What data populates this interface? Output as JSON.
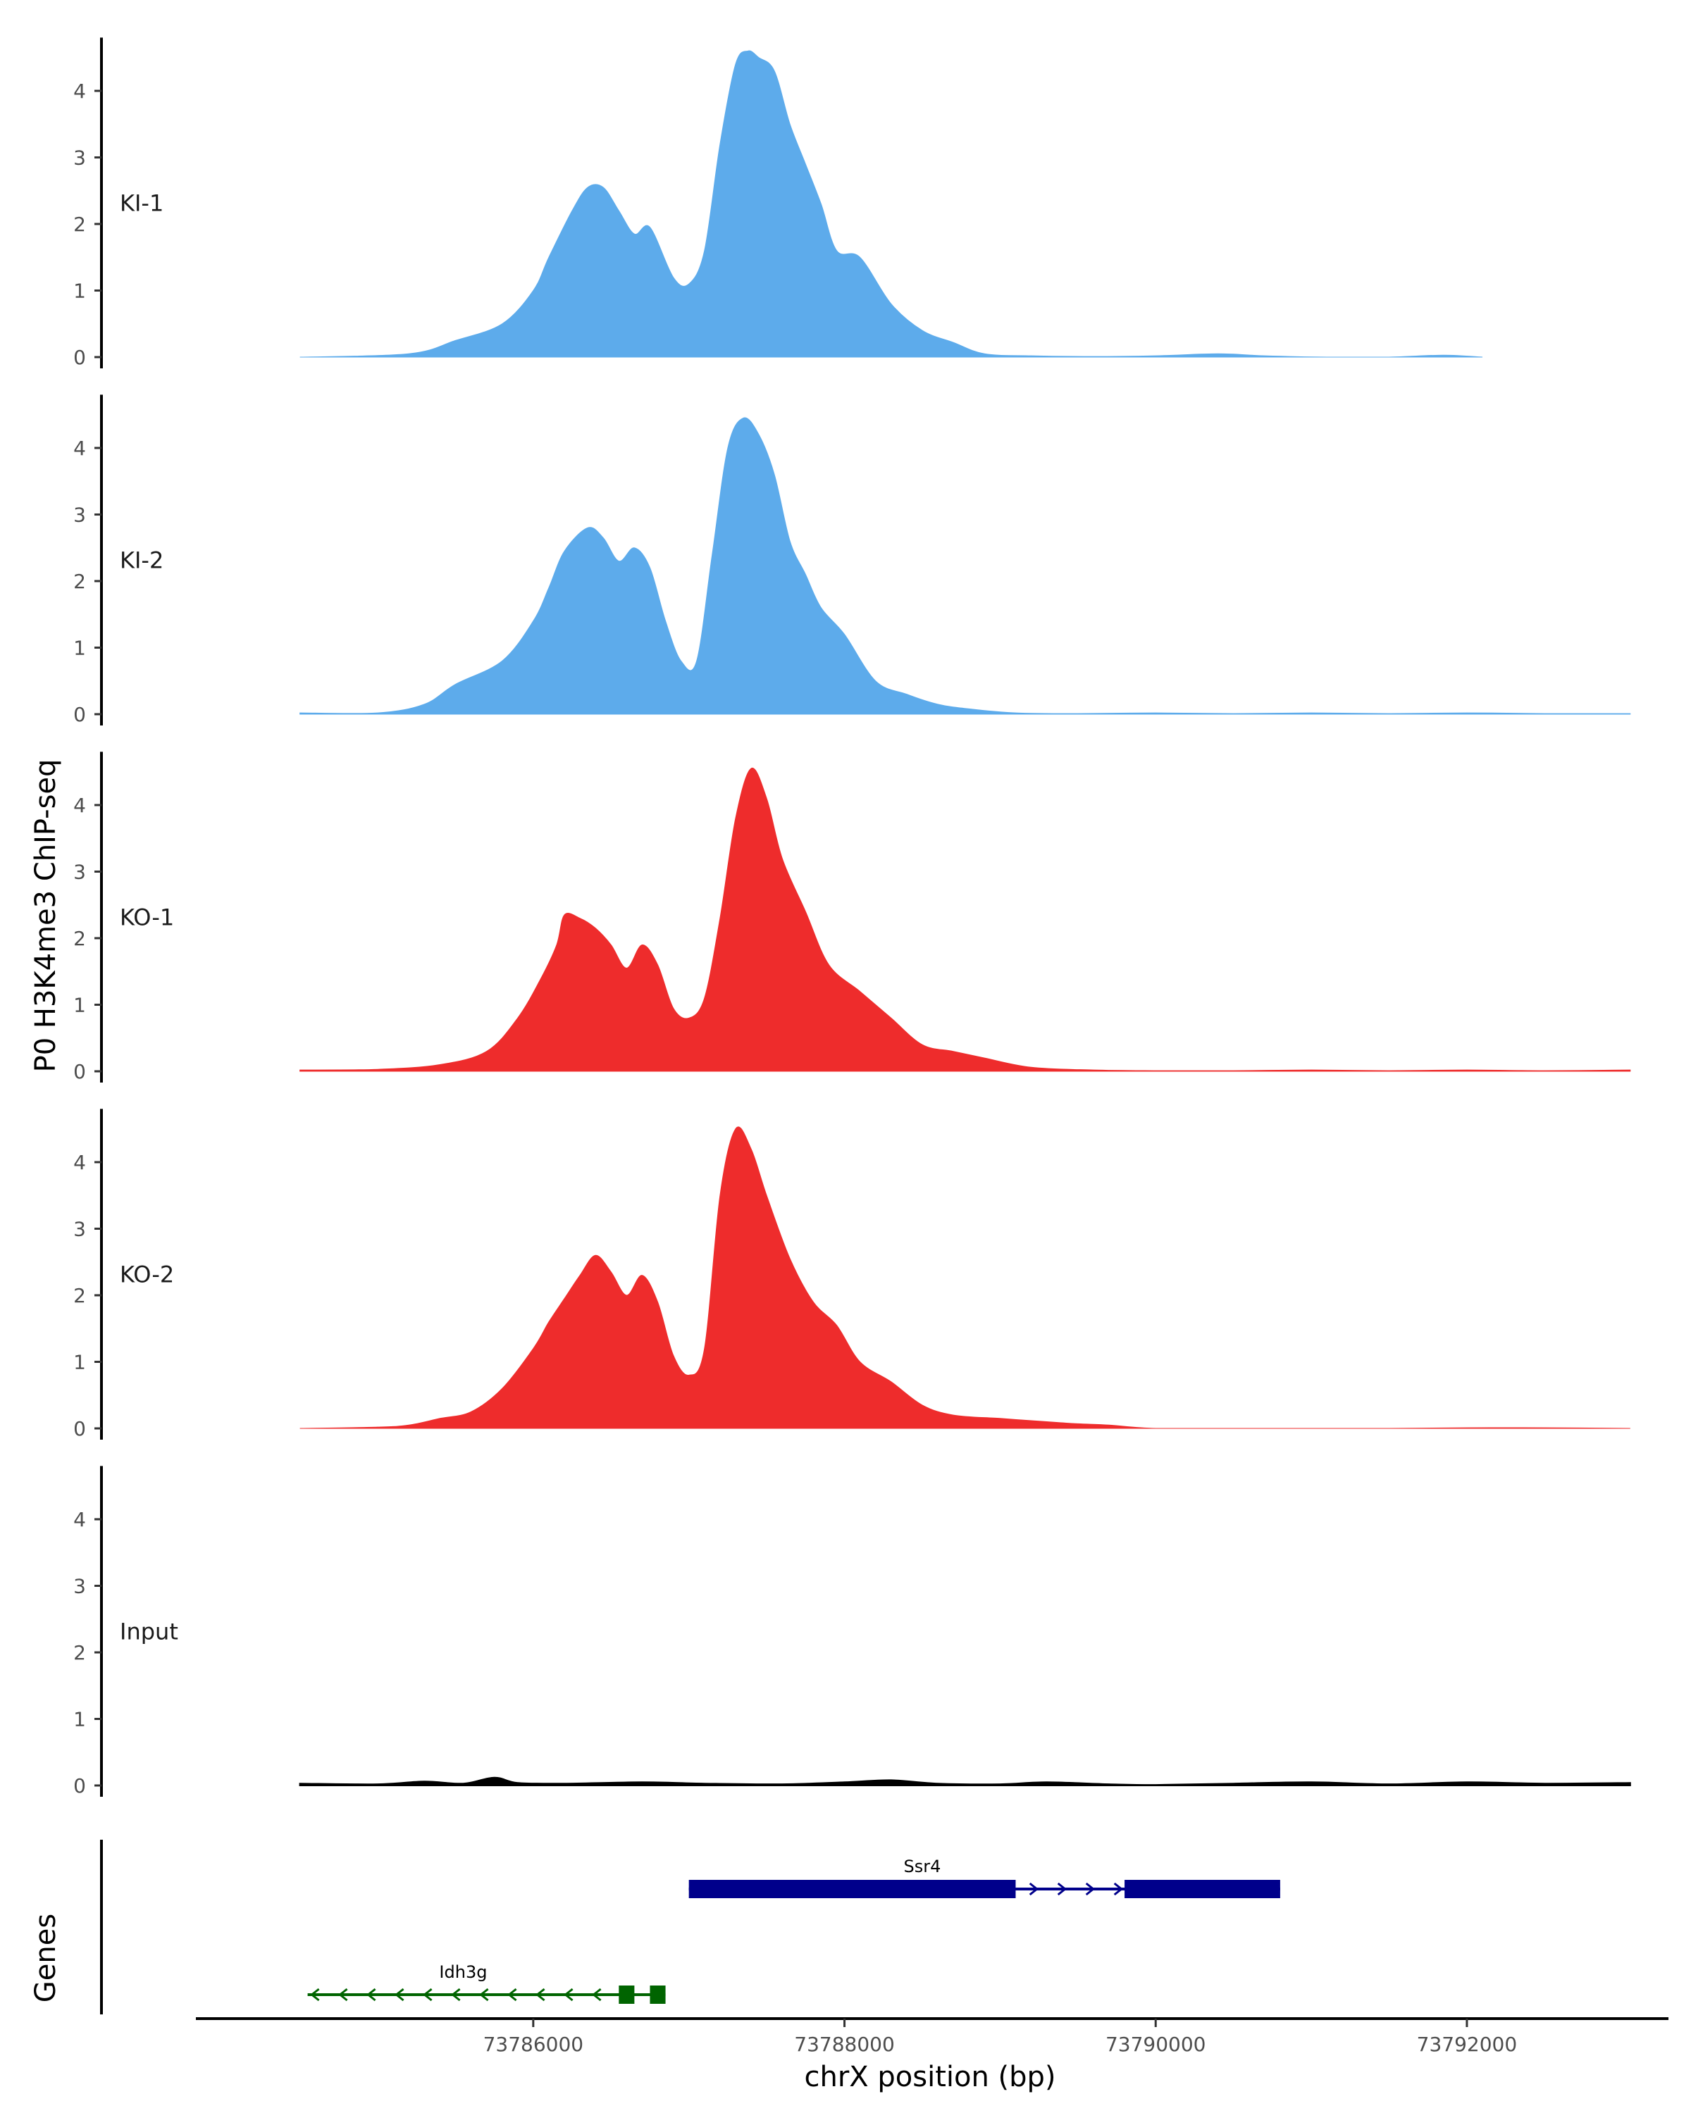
{
  "chart_data": {
    "type": "area",
    "ylabel": "P0 H3K4me3 ChIP-seq",
    "xlabel": "chrX position (bp)",
    "genes_label": "Genes",
    "xlim": [
      73783850,
      73793250
    ],
    "ylim": [
      0,
      4.8
    ],
    "y_ticks": [
      0,
      1,
      2,
      3,
      4
    ],
    "x_ticks": [
      73786000,
      73788000,
      73790000,
      73792000
    ],
    "x_tick_labels": [
      "73786000",
      "73788000",
      "73790000",
      "73792000"
    ],
    "colors": {
      "KI": "#5DABEB",
      "KO": "#EE2C2C",
      "Input": "#000000",
      "gene_plus": "#00008B",
      "gene_minus": "#006400"
    },
    "series": [
      {
        "name": "KI-1",
        "color": "#5DABEB",
        "x": [
          73784500,
          73785200,
          73785500,
          73785800,
          73786000,
          73786100,
          73786250,
          73786350,
          73786450,
          73786550,
          73786650,
          73786750,
          73786900,
          73787000,
          73787100,
          73787200,
          73787300,
          73787380,
          73787450,
          73787550,
          73787650,
          73787750,
          73787850,
          73787950,
          73788100,
          73788300,
          73788500,
          73788700,
          73788900,
          73789200,
          73789600,
          73790000,
          73790400,
          73790700,
          73791100,
          73791500,
          73791850,
          73792100
        ],
        "values": [
          0,
          0.05,
          0.25,
          0.5,
          1.0,
          1.5,
          2.2,
          2.55,
          2.55,
          2.2,
          1.85,
          1.95,
          1.2,
          1.1,
          1.6,
          3.2,
          4.4,
          4.6,
          4.5,
          4.3,
          3.5,
          2.9,
          2.3,
          1.6,
          1.5,
          0.8,
          0.4,
          0.22,
          0.05,
          0.02,
          0.01,
          0.02,
          0.05,
          0.02,
          0.0,
          0.0,
          0.03,
          0.0
        ]
      },
      {
        "name": "KI-2",
        "color": "#5DABEB",
        "x": [
          73784500,
          73785000,
          73785300,
          73785500,
          73785800,
          73786000,
          73786100,
          73786200,
          73786350,
          73786450,
          73786550,
          73786650,
          73786750,
          73786850,
          73786950,
          73787050,
          73787150,
          73787250,
          73787350,
          73787450,
          73787550,
          73787650,
          73787750,
          73787850,
          73788000,
          73788200,
          73788400,
          73788600,
          73788800,
          73789100,
          73789500,
          73790000,
          73790500,
          73791000,
          73791500,
          73792000,
          73792500,
          73793050
        ],
        "values": [
          0.02,
          0.02,
          0.15,
          0.45,
          0.8,
          1.4,
          1.9,
          2.45,
          2.8,
          2.65,
          2.3,
          2.5,
          2.2,
          1.4,
          0.8,
          0.8,
          2.4,
          4.0,
          4.45,
          4.2,
          3.6,
          2.6,
          2.1,
          1.6,
          1.2,
          0.5,
          0.3,
          0.15,
          0.08,
          0.02,
          0.01,
          0.02,
          0.01,
          0.02,
          0.01,
          0.02,
          0.01,
          0.01
        ]
      },
      {
        "name": "KO-1",
        "color": "#EE2C2C",
        "x": [
          73784500,
          73785000,
          73785400,
          73785700,
          73785900,
          73786050,
          73786150,
          73786200,
          73786300,
          73786400,
          73786500,
          73786600,
          73786700,
          73786800,
          73786900,
          73787000,
          73787100,
          73787200,
          73787300,
          73787400,
          73787500,
          73787600,
          73787750,
          73787900,
          73788100,
          73788300,
          73788500,
          73788700,
          73788900,
          73789200,
          73789600,
          73790000,
          73790500,
          73791000,
          73791500,
          73792000,
          73792500,
          73793050
        ],
        "values": [
          0.02,
          0.03,
          0.1,
          0.3,
          0.8,
          1.4,
          1.9,
          2.35,
          2.3,
          2.15,
          1.9,
          1.55,
          1.9,
          1.6,
          0.95,
          0.8,
          1.1,
          2.3,
          3.8,
          4.55,
          4.1,
          3.2,
          2.4,
          1.6,
          1.2,
          0.8,
          0.4,
          0.3,
          0.2,
          0.06,
          0.02,
          0.01,
          0.01,
          0.02,
          0.01,
          0.02,
          0.01,
          0.02
        ]
      },
      {
        "name": "KO-2",
        "color": "#EE2C2C",
        "x": [
          73784500,
          73785000,
          73785200,
          73785400,
          73785600,
          73785800,
          73786000,
          73786100,
          73786200,
          73786300,
          73786400,
          73786500,
          73786600,
          73786700,
          73786800,
          73786900,
          73787000,
          73787100,
          73787200,
          73787300,
          73787400,
          73787500,
          73787650,
          73787800,
          73787950,
          73788100,
          73788300,
          73788500,
          73788700,
          73789000,
          73789300,
          73789500,
          73789700,
          73790000,
          73790500,
          73791000,
          73791500,
          73792000,
          73792500,
          73793050
        ],
        "values": [
          0.0,
          0.02,
          0.05,
          0.15,
          0.25,
          0.6,
          1.2,
          1.6,
          1.95,
          2.3,
          2.6,
          2.35,
          2.0,
          2.3,
          1.9,
          1.1,
          0.8,
          1.2,
          3.5,
          4.5,
          4.2,
          3.5,
          2.55,
          1.9,
          1.55,
          1.0,
          0.7,
          0.35,
          0.2,
          0.15,
          0.1,
          0.07,
          0.05,
          0.0,
          0.0,
          0.0,
          0.0,
          0.01,
          0.01,
          0.0
        ]
      },
      {
        "name": "Input",
        "color": "#000000",
        "x": [
          73784500,
          73785000,
          73785300,
          73785550,
          73785750,
          73785900,
          73786200,
          73786700,
          73787100,
          73787600,
          73788000,
          73788300,
          73788600,
          73789000,
          73789300,
          73789700,
          73790000,
          73790500,
          73791000,
          73791500,
          73792000,
          73792500,
          73793050
        ],
        "values": [
          0.03,
          0.02,
          0.06,
          0.03,
          0.12,
          0.04,
          0.03,
          0.05,
          0.03,
          0.02,
          0.05,
          0.08,
          0.03,
          0.02,
          0.05,
          0.02,
          0.01,
          0.03,
          0.05,
          0.02,
          0.05,
          0.03,
          0.04
        ]
      }
    ],
    "genes": [
      {
        "name": "Ssr4",
        "strand": "+",
        "color": "#00008B",
        "start": 73787000,
        "end": 73790800,
        "exons": [
          [
            73787000,
            73789100
          ],
          [
            73789800,
            73790800
          ]
        ],
        "label_x": 73788500
      },
      {
        "name": "Idh3g",
        "strand": "-",
        "color": "#006400",
        "start": 73784550,
        "end": 73786850,
        "exons": [
          [
            73786550,
            73786650
          ],
          [
            73786750,
            73786850
          ]
        ],
        "label_x": 73785550
      }
    ]
  }
}
